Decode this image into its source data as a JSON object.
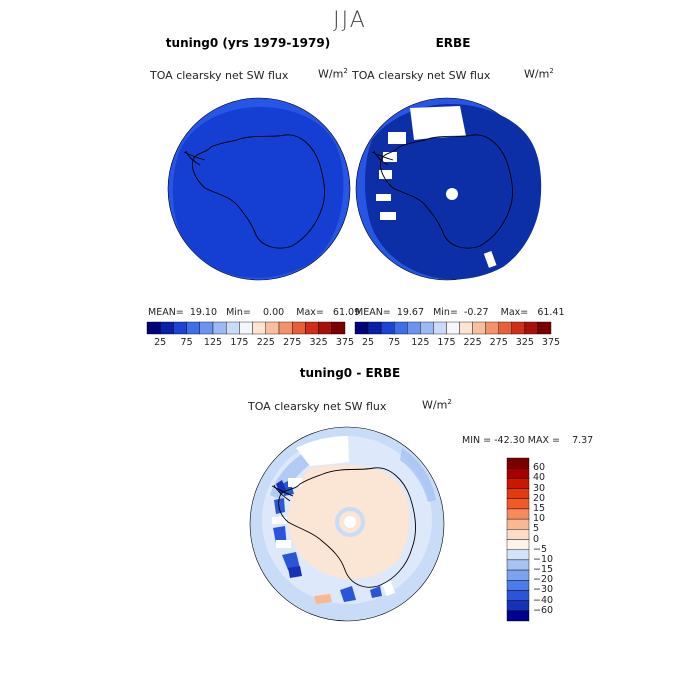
{
  "page": {
    "season_title": "JJA",
    "model_panel_title": "tuning0 (yrs 1979-1979)",
    "obs_panel_title": "ERBE",
    "diff_panel_title": "tuning0 - ERBE",
    "variable": "TOA clearsky net SW flux",
    "units_base": "W/m",
    "units_exp": "2"
  },
  "colors": {
    "model_field": "#143fd2",
    "model_outer_ring": "#2755e6",
    "obs_field": "#0c2fa8",
    "obs_outer_ring": "#2755e6",
    "missing": "#ffffff",
    "diff_ocean": "#c9dcf7",
    "diff_land": "#fbe5d4"
  },
  "chart_data": [
    {
      "type": "heatmap",
      "title": "tuning0 (yrs 1979-1979)",
      "subtitle": "TOA clearsky net SW flux",
      "projection": "south polar stereographic",
      "stats": {
        "mean_label": "MEAN=",
        "mean": "19.10",
        "min_label": "Min=",
        "min": "0.00",
        "max_label": "Max=",
        "max": "61.09"
      },
      "colorbar": {
        "ticks": [
          "25",
          "75",
          "125",
          "175",
          "225",
          "275",
          "325",
          "375"
        ],
        "colors": [
          "#00007a",
          "#0a1fa8",
          "#1d43d5",
          "#3f6fe8",
          "#6b93ef",
          "#9cb9f4",
          "#cadbf8",
          "#f3f6fb",
          "#fde3d2",
          "#f8bf9f",
          "#f2926a",
          "#e75f3a",
          "#d02e17",
          "#a80f08",
          "#790000"
        ]
      }
    },
    {
      "type": "heatmap",
      "title": "ERBE",
      "subtitle": "TOA clearsky net SW flux",
      "projection": "south polar stereographic",
      "stats": {
        "mean_label": "MEAN=",
        "mean": "19.67",
        "min_label": "Min=",
        "min": "-0.27",
        "max_label": "Max=",
        "max": "61.41"
      },
      "colorbar": {
        "ticks": [
          "25",
          "75",
          "125",
          "175",
          "225",
          "275",
          "325",
          "375"
        ],
        "colors": [
          "#00007a",
          "#0a1fa8",
          "#1d43d5",
          "#3f6fe8",
          "#6b93ef",
          "#9cb9f4",
          "#cadbf8",
          "#f3f6fb",
          "#fde3d2",
          "#f8bf9f",
          "#f2926a",
          "#e75f3a",
          "#d02e17",
          "#a80f08",
          "#790000"
        ]
      }
    },
    {
      "type": "heatmap",
      "title": "tuning0 - ERBE",
      "subtitle": "TOA clearsky net SW flux",
      "projection": "south polar stereographic",
      "stats": {
        "min_label": "MIN =",
        "min": "-42.30",
        "max_label": "MAX =",
        "max": "7.37"
      },
      "colorbar": {
        "orientation": "vertical",
        "ticks": [
          "60",
          "40",
          "30",
          "20",
          "15",
          "10",
          "5",
          "0",
          "−5",
          "−10",
          "−15",
          "−20",
          "−30",
          "−40",
          "−60"
        ],
        "colors": [
          "#7a0000",
          "#a30000",
          "#c81800",
          "#e03a0e",
          "#f05a26",
          "#f78a5c",
          "#fab892",
          "#fcdcc6",
          "#fdf3eb",
          "#d3e3f9",
          "#a6c3f4",
          "#7aa2ee",
          "#4c7ce7",
          "#2a55d8",
          "#1531b5",
          "#000090"
        ]
      }
    }
  ]
}
